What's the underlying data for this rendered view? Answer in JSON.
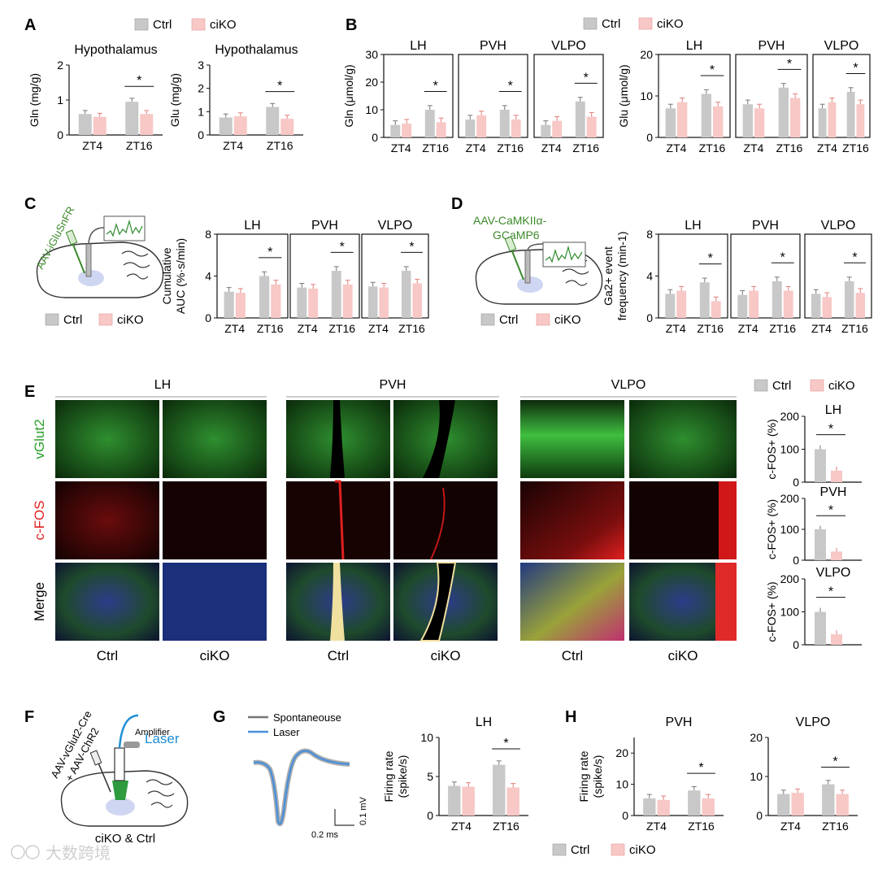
{
  "colors": {
    "ctrl": "#c8c8c8",
    "ciko": "#f7c8c6",
    "ctrl_dot": "#8a8a8a",
    "ciko_dot": "#ec9590",
    "green": "#3c8a2a",
    "blue": "#4a90d9",
    "red": "#e02020",
    "vglut_green": "#2aa02a"
  },
  "legend": {
    "ctrl": "Ctrl",
    "ciko": "ciKO"
  },
  "star": "*",
  "panels": {
    "A": "A",
    "B": "B",
    "C": "C",
    "D": "D",
    "E": "E",
    "F": "F",
    "G": "G",
    "H": "H"
  },
  "panel_C": {
    "virus": "AAV-iGluSnFR"
  },
  "panel_D": {
    "virus_line1": "AAV-CaMKIIα-",
    "virus_line2": "GCaMP6"
  },
  "panel_E": {
    "regions": [
      "LH",
      "PVH",
      "VLPO"
    ],
    "rows": [
      "vGlut2",
      "c-FOS",
      "Merge"
    ],
    "cols": [
      "Ctrl",
      "ciKO"
    ]
  },
  "panel_F": {
    "virus_line1": "AAV-vGlut2-Cre",
    "virus_line2": "+ AAV-ChR2",
    "laser": "Laser",
    "amplifier": "Amplifier",
    "caption": "ciKO & Ctrl"
  },
  "panel_G": {
    "legend_spont": "Spontaneouse",
    "legend_laser": "Laser",
    "scale_v": "0.1 mV",
    "scale_t": "0.2 ms"
  },
  "watermark": "大数跨境",
  "chart_data": [
    {
      "id": "A1",
      "type": "bar",
      "title": "Hypothalamus",
      "ylabel": "Gln (mg/g)",
      "ylim": [
        0,
        2
      ],
      "yticks": [
        0,
        1,
        2
      ],
      "categories": [
        "ZT4",
        "ZT16"
      ],
      "series": [
        {
          "name": "Ctrl",
          "values": [
            0.6,
            0.95
          ]
        },
        {
          "name": "ciKO",
          "values": [
            0.52,
            0.6
          ]
        }
      ],
      "sig": [
        1
      ]
    },
    {
      "id": "A2",
      "type": "bar",
      "title": "Hypothalamus",
      "ylabel": "Glu (mg/g)",
      "ylim": [
        0,
        3
      ],
      "yticks": [
        0,
        1,
        2,
        3
      ],
      "categories": [
        "ZT4",
        "ZT16"
      ],
      "series": [
        {
          "name": "Ctrl",
          "values": [
            0.75,
            1.2
          ]
        },
        {
          "name": "ciKO",
          "values": [
            0.8,
            0.7
          ]
        }
      ],
      "sig": [
        1
      ]
    },
    {
      "id": "B1",
      "type": "bar",
      "title": "LH",
      "ylabel": "Gln (μmol/g)",
      "ylim": [
        0,
        30
      ],
      "yticks": [
        0,
        10,
        20,
        30
      ],
      "categories": [
        "ZT4",
        "ZT16"
      ],
      "series": [
        {
          "name": "Ctrl",
          "values": [
            4.5,
            10
          ]
        },
        {
          "name": "ciKO",
          "values": [
            5,
            5.5
          ]
        }
      ],
      "sig": [
        1
      ]
    },
    {
      "id": "B2",
      "type": "bar",
      "title": "PVH",
      "ylim": [
        0,
        30
      ],
      "categories": [
        "ZT4",
        "ZT16"
      ],
      "series": [
        {
          "name": "Ctrl",
          "values": [
            6.5,
            10
          ]
        },
        {
          "name": "ciKO",
          "values": [
            8,
            6.5
          ]
        }
      ],
      "sig": [
        1
      ]
    },
    {
      "id": "B3",
      "type": "bar",
      "title": "VLPO",
      "ylim": [
        0,
        30
      ],
      "categories": [
        "ZT4",
        "ZT16"
      ],
      "series": [
        {
          "name": "Ctrl",
          "values": [
            4.5,
            13
          ]
        },
        {
          "name": "ciKO",
          "values": [
            6,
            7.5
          ]
        }
      ],
      "sig": [
        1
      ]
    },
    {
      "id": "B4",
      "type": "bar",
      "title": "LH",
      "ylabel": "Glu (μmol/g)",
      "ylim": [
        0,
        20
      ],
      "yticks": [
        0,
        10,
        20
      ],
      "categories": [
        "ZT4",
        "ZT16"
      ],
      "series": [
        {
          "name": "Ctrl",
          "values": [
            7,
            10.5
          ]
        },
        {
          "name": "ciKO",
          "values": [
            8.5,
            7.5
          ]
        }
      ],
      "sig": [
        1
      ]
    },
    {
      "id": "B5",
      "type": "bar",
      "title": "PVH",
      "ylim": [
        0,
        20
      ],
      "categories": [
        "ZT4",
        "ZT16"
      ],
      "series": [
        {
          "name": "Ctrl",
          "values": [
            8,
            12
          ]
        },
        {
          "name": "ciKO",
          "values": [
            7,
            9.5
          ]
        }
      ],
      "sig": [
        1
      ]
    },
    {
      "id": "B6",
      "type": "bar",
      "title": "VLPO",
      "ylim": [
        0,
        20
      ],
      "categories": [
        "ZT4",
        "ZT16"
      ],
      "series": [
        {
          "name": "Ctrl",
          "values": [
            7,
            11
          ]
        },
        {
          "name": "ciKO",
          "values": [
            8.5,
            8
          ]
        }
      ],
      "sig": [
        1
      ]
    },
    {
      "id": "C1",
      "type": "bar",
      "title": "LH",
      "ylabel": [
        "Cumulative",
        "AUC (%·s/min)"
      ],
      "ylim": [
        0,
        8
      ],
      "yticks": [
        0,
        4,
        8
      ],
      "categories": [
        "ZT4",
        "ZT16"
      ],
      "series": [
        {
          "name": "Ctrl",
          "values": [
            2.5,
            4
          ]
        },
        {
          "name": "ciKO",
          "values": [
            2.4,
            3.2
          ]
        }
      ],
      "sig": [
        1
      ]
    },
    {
      "id": "C2",
      "type": "bar",
      "title": "PVH",
      "ylim": [
        0,
        8
      ],
      "categories": [
        "ZT4",
        "ZT16"
      ],
      "series": [
        {
          "name": "Ctrl",
          "values": [
            2.9,
            4.5
          ]
        },
        {
          "name": "ciKO",
          "values": [
            2.8,
            3.2
          ]
        }
      ],
      "sig": [
        1
      ]
    },
    {
      "id": "C3",
      "type": "bar",
      "title": "VLPO",
      "ylim": [
        0,
        8
      ],
      "categories": [
        "ZT4",
        "ZT16"
      ],
      "series": [
        {
          "name": "Ctrl",
          "values": [
            3,
            4.5
          ]
        },
        {
          "name": "ciKO",
          "values": [
            2.9,
            3.3
          ]
        }
      ],
      "sig": [
        1
      ]
    },
    {
      "id": "D1",
      "type": "bar",
      "title": "LH",
      "ylabel": [
        "Ga2+ event",
        "frequency (min-1)"
      ],
      "ylim": [
        0,
        8
      ],
      "yticks": [
        0,
        4,
        8
      ],
      "categories": [
        "ZT4",
        "ZT16"
      ],
      "series": [
        {
          "name": "Ctrl",
          "values": [
            2.3,
            3.4
          ]
        },
        {
          "name": "ciKO",
          "values": [
            2.6,
            1.6
          ]
        }
      ],
      "sig": [
        1
      ]
    },
    {
      "id": "D2",
      "type": "bar",
      "title": "PVH",
      "ylim": [
        0,
        8
      ],
      "categories": [
        "ZT4",
        "ZT16"
      ],
      "series": [
        {
          "name": "Ctrl",
          "values": [
            2.2,
            3.5
          ]
        },
        {
          "name": "ciKO",
          "values": [
            2.6,
            2.6
          ]
        }
      ],
      "sig": [
        1
      ]
    },
    {
      "id": "D3",
      "type": "bar",
      "title": "VLPO",
      "ylim": [
        0,
        8
      ],
      "categories": [
        "ZT4",
        "ZT16"
      ],
      "series": [
        {
          "name": "Ctrl",
          "values": [
            2.3,
            3.5
          ]
        },
        {
          "name": "ciKO",
          "values": [
            2.0,
            2.4
          ]
        }
      ],
      "sig": [
        1
      ]
    },
    {
      "id": "E1",
      "type": "bar",
      "title": "LH",
      "ylabel": "c-FOS+ (%)",
      "ylim": [
        0,
        200
      ],
      "yticks": [
        0,
        100,
        200
      ],
      "categories": [
        "Ctrl",
        "ciKO"
      ],
      "values": [
        100,
        35
      ],
      "sig": true
    },
    {
      "id": "E2",
      "type": "bar",
      "title": "PVH",
      "ylabel": "c-FOS+ (%)",
      "ylim": [
        0,
        200
      ],
      "yticks": [
        0,
        100,
        200
      ],
      "categories": [
        "Ctrl",
        "ciKO"
      ],
      "values": [
        100,
        28
      ],
      "sig": true
    },
    {
      "id": "E3",
      "type": "bar",
      "title": "VLPO",
      "ylabel": "c-FOS+ (%)",
      "ylim": [
        0,
        200
      ],
      "yticks": [
        0,
        100,
        200
      ],
      "categories": [
        "Ctrl",
        "ciKO"
      ],
      "values": [
        100,
        32
      ],
      "sig": true
    },
    {
      "id": "G1",
      "type": "bar",
      "title": "LH",
      "ylabel": [
        "Firing rate",
        "(spike/s)"
      ],
      "ylim": [
        0,
        10
      ],
      "yticks": [
        0,
        5,
        10
      ],
      "categories": [
        "ZT4",
        "ZT16"
      ],
      "series": [
        {
          "name": "Ctrl",
          "values": [
            3.8,
            6.5
          ]
        },
        {
          "name": "ciKO",
          "values": [
            3.7,
            3.6
          ]
        }
      ],
      "sig": [
        1
      ]
    },
    {
      "id": "H1",
      "type": "bar",
      "title": "PVH",
      "ylabel": [
        "Firing rate",
        "(spike/s)"
      ],
      "ylim": [
        0,
        25
      ],
      "yticks": [
        0,
        10,
        20
      ],
      "categories": [
        "ZT4",
        "ZT16"
      ],
      "series": [
        {
          "name": "Ctrl",
          "values": [
            5.5,
            8
          ]
        },
        {
          "name": "ciKO",
          "values": [
            5,
            5.5
          ]
        }
      ],
      "sig": [
        1
      ]
    },
    {
      "id": "H2",
      "type": "bar",
      "title": "VLPO",
      "ylim": [
        0,
        20
      ],
      "yticks": [
        0,
        10,
        20
      ],
      "categories": [
        "ZT4",
        "ZT16"
      ],
      "series": [
        {
          "name": "Ctrl",
          "values": [
            5.5,
            8
          ]
        },
        {
          "name": "ciKO",
          "values": [
            5.8,
            5.5
          ]
        }
      ],
      "sig": [
        1
      ]
    }
  ]
}
